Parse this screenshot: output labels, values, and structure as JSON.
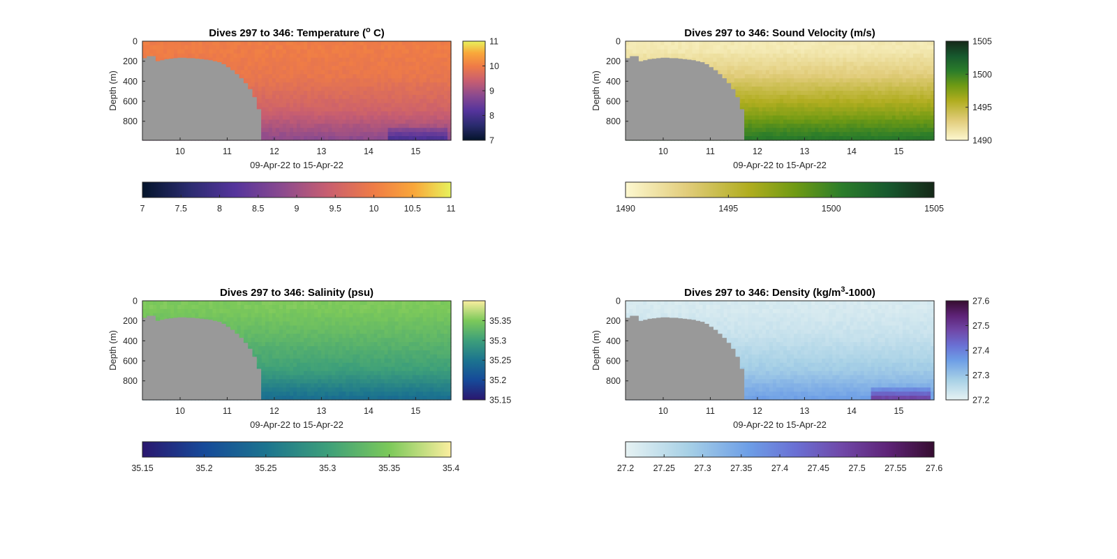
{
  "figure": {
    "panels": [
      {
        "id": "temperature",
        "title_main": "Dives 297 to 346: Temperature (",
        "title_sup": "o",
        "title_tail": " C)",
        "cmap": "thermal",
        "clim": [
          7,
          11
        ],
        "side_ticks": [
          "7",
          "8",
          "9",
          "10",
          "11"
        ],
        "side_tick_values": [
          7,
          8,
          9,
          10,
          11
        ],
        "bottom_ticks": [
          "7",
          "7.5",
          "8",
          "8.5",
          "9",
          "9.5",
          "10",
          "10.5",
          "11"
        ],
        "bottom_tick_values": [
          7,
          7.5,
          8,
          8.5,
          9,
          9.5,
          10,
          10.5,
          11
        ]
      },
      {
        "id": "sound-velocity",
        "title_main": "Dives 297 to 346: Sound Velocity (m/s)",
        "title_sup": "",
        "title_tail": "",
        "cmap": "speed",
        "clim": [
          1490,
          1505
        ],
        "side_ticks": [
          "1490",
          "1495",
          "1500",
          "1505"
        ],
        "side_tick_values": [
          1490,
          1495,
          1500,
          1505
        ],
        "bottom_ticks": [
          "1490",
          "1495",
          "1500",
          "1505"
        ],
        "bottom_tick_values": [
          1490,
          1495,
          1500,
          1505
        ]
      },
      {
        "id": "salinity",
        "title_main": "Dives 297 to 346: Salinity (psu)",
        "title_sup": "",
        "title_tail": "",
        "cmap": "haline",
        "clim": [
          35.15,
          35.4
        ],
        "side_ticks": [
          "35.15",
          "35.2",
          "35.25",
          "35.3",
          "35.35"
        ],
        "side_tick_values": [
          35.15,
          35.2,
          35.25,
          35.3,
          35.35
        ],
        "bottom_ticks": [
          "35.15",
          "35.2",
          "35.25",
          "35.3",
          "35.35",
          "35.4"
        ],
        "bottom_tick_values": [
          35.15,
          35.2,
          35.25,
          35.3,
          35.35,
          35.4
        ]
      },
      {
        "id": "density",
        "title_main": "Dives 297 to 346: Density (kg/m",
        "title_sup": "3",
        "title_tail": "-1000)",
        "cmap": "dense",
        "clim": [
          27.2,
          27.6
        ],
        "side_ticks": [
          "27.2",
          "27.3",
          "27.4",
          "27.5",
          "27.6"
        ],
        "side_tick_values": [
          27.2,
          27.3,
          27.4,
          27.5,
          27.6
        ],
        "bottom_ticks": [
          "27.2",
          "27.25",
          "27.3",
          "27.35",
          "27.4",
          "27.45",
          "27.5",
          "27.55",
          "27.6"
        ],
        "bottom_tick_values": [
          27.2,
          27.25,
          27.3,
          27.35,
          27.4,
          27.45,
          27.5,
          27.55,
          27.6
        ]
      }
    ],
    "ylabel": "Depth (m)",
    "xlabel": "09-Apr-22 to 15-Apr-22",
    "y_ticks": [
      "0",
      "200",
      "400",
      "600",
      "800"
    ],
    "x_ticks": [
      "10",
      "11",
      "12",
      "13",
      "14",
      "15"
    ],
    "land_color": "#999999"
  },
  "chart_data": [
    {
      "type": "heatmap",
      "title": "Dives 297 to 346: Temperature (o C)",
      "xlabel": "09-Apr-22 to 15-Apr-22",
      "ylabel": "Depth (m)",
      "x_range_days": [
        9.2,
        15.75
      ],
      "x_ticks": [
        10,
        11,
        12,
        13,
        14,
        15
      ],
      "ylim": [
        0,
        990
      ],
      "y_reversed": true,
      "y_ticks": [
        0,
        200,
        400,
        600,
        800
      ],
      "colorbar": {
        "range": [
          7,
          11
        ],
        "ticks": [
          7,
          8,
          9,
          10,
          11
        ],
        "colormap": "thermal"
      },
      "value_levels": {
        "near_surface": 10.0,
        "upper": 9.9,
        "mid": 9.5,
        "deep": 8.8,
        "deepest_after_day_14.5": 8.0
      }
    },
    {
      "type": "heatmap",
      "title": "Dives 297 to 346: Sound Velocity (m/s)",
      "xlabel": "09-Apr-22 to 15-Apr-22",
      "ylabel": "Depth (m)",
      "x_range_days": [
        9.2,
        15.75
      ],
      "x_ticks": [
        10,
        11,
        12,
        13,
        14,
        15
      ],
      "ylim": [
        0,
        990
      ],
      "y_reversed": true,
      "y_ticks": [
        0,
        200,
        400,
        600,
        800
      ],
      "colorbar": {
        "range": [
          1490,
          1505
        ],
        "ticks": [
          1490,
          1495,
          1500,
          1505
        ],
        "colormap": "speed"
      },
      "value_levels": {
        "near_surface": 1491,
        "upper": 1493,
        "mid": 1497,
        "deep": 1501
      }
    },
    {
      "type": "heatmap",
      "title": "Dives 297 to 346: Salinity (psu)",
      "xlabel": "09-Apr-22 to 15-Apr-22",
      "ylabel": "Depth (m)",
      "x_range_days": [
        9.2,
        15.75
      ],
      "x_ticks": [
        10,
        11,
        12,
        13,
        14,
        15
      ],
      "ylim": [
        0,
        990
      ],
      "y_reversed": true,
      "y_ticks": [
        0,
        200,
        400,
        600,
        800
      ],
      "colorbar": {
        "range": [
          35.15,
          35.4
        ],
        "ticks": [
          35.15,
          35.2,
          35.25,
          35.3,
          35.35
        ],
        "colormap": "haline"
      },
      "value_levels": {
        "near_surface": 35.35,
        "upper": 35.33,
        "mid": 35.3,
        "deep": 35.24
      }
    },
    {
      "type": "heatmap",
      "title": "Dives 297 to 346: Density (kg/m3-1000)",
      "xlabel": "09-Apr-22 to 15-Apr-22",
      "ylabel": "Depth (m)",
      "x_range_days": [
        9.2,
        15.75
      ],
      "x_ticks": [
        10,
        11,
        12,
        13,
        14,
        15
      ],
      "ylim": [
        0,
        990
      ],
      "y_reversed": true,
      "y_ticks": [
        0,
        200,
        400,
        600,
        800
      ],
      "colorbar": {
        "range": [
          27.2,
          27.6
        ],
        "ticks": [
          27.2,
          27.3,
          27.4,
          27.5,
          27.6
        ],
        "colormap": "dense"
      },
      "value_levels": {
        "near_surface": 27.22,
        "upper": 27.24,
        "mid": 27.29,
        "deep": 27.36,
        "deepest_after_day_14.5": 27.5
      }
    }
  ]
}
